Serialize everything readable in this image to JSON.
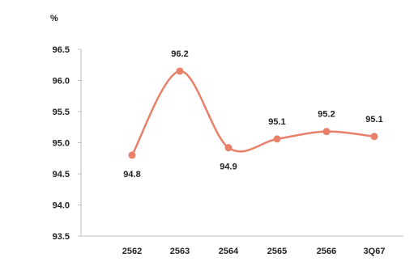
{
  "chart_data": {
    "type": "line",
    "title": "",
    "xlabel": "",
    "ylabel": "%",
    "categories": [
      "2562",
      "2563",
      "2564",
      "2565",
      "2566",
      "3Q67"
    ],
    "series": [
      {
        "values": [
          94.8,
          96.2,
          94.9,
          95.1,
          95.2,
          95.1
        ],
        "display_labels": [
          "94.8",
          "96.2",
          "94.9",
          "95.1",
          "95.2",
          "95.1"
        ]
      }
    ],
    "plotted_values": [
      94.8,
      96.15,
      94.92,
      95.06,
      95.18,
      95.1
    ],
    "label_positions": [
      "below",
      "above",
      "below",
      "above",
      "above",
      "above"
    ],
    "ylim": [
      93.5,
      96.5
    ],
    "yticks": [
      "93.5",
      "94.0",
      "94.5",
      "95.0",
      "95.5",
      "96.0",
      "96.5"
    ],
    "grid": false,
    "smooth": true,
    "line_color": "#e8806a",
    "axis_color": "#bfbfbf"
  }
}
